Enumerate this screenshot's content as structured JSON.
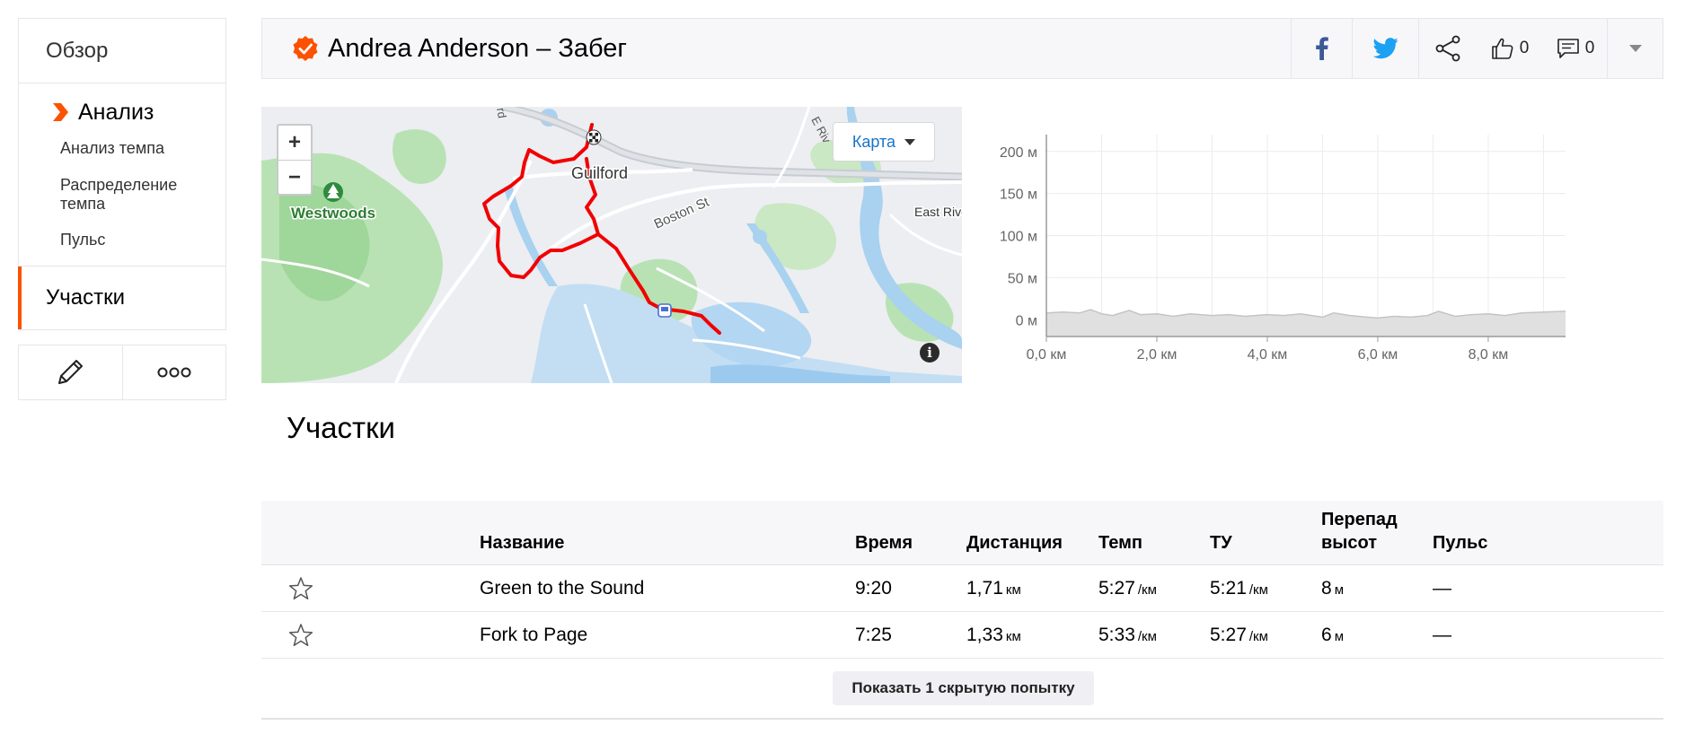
{
  "sidebar": {
    "overview": "Обзор",
    "analysis": "Анализ",
    "sub_items": [
      "Анализ темпа",
      "Распределение темпа",
      "Пульс"
    ],
    "segments": "Участки",
    "edit_icon": "pencil-icon",
    "more_icon": "ellipsis-icon"
  },
  "header": {
    "title": "Andrea Anderson – Забег",
    "kudos_count": "0",
    "comment_count": "0",
    "icons": [
      "facebook-icon",
      "twitter-icon",
      "share-icon",
      "thumbs-up-icon",
      "comment-icon",
      "chevron-down-icon"
    ]
  },
  "map": {
    "zoom_in": "+",
    "zoom_out": "−",
    "type_label": "Карта",
    "info_label": "i",
    "labels": {
      "guilford": "Guilford",
      "westwoods": "Westwoods",
      "boston_st": "Boston St",
      "east_river": "East Rive",
      "e_riv": "E Riv",
      "rd": "rd"
    }
  },
  "chart_data": {
    "type": "area",
    "title": "",
    "xlabel": "",
    "ylabel": "",
    "x_ticks": [
      "0,0 км",
      "2,0 км",
      "4,0 км",
      "6,0 км",
      "8,0 км"
    ],
    "y_ticks": [
      "200 м",
      "150 м",
      "100 м",
      "50 м",
      "0 м"
    ],
    "xlim": [
      0,
      9.4
    ],
    "ylim": [
      -20,
      220
    ],
    "grid": true,
    "x": [
      0,
      0.3,
      0.6,
      0.8,
      1.0,
      1.2,
      1.5,
      1.7,
      2.0,
      2.3,
      2.6,
      3.0,
      3.3,
      3.6,
      4.0,
      4.3,
      4.6,
      5.0,
      5.2,
      5.5,
      5.8,
      6.0,
      6.3,
      6.6,
      6.9,
      7.1,
      7.4,
      7.7,
      8.0,
      8.3,
      8.6,
      9.0,
      9.4
    ],
    "values": [
      8,
      9,
      8,
      12,
      7,
      5,
      11,
      6,
      7,
      4,
      7,
      5,
      6,
      4,
      6,
      5,
      7,
      3,
      8,
      5,
      3,
      2,
      4,
      3,
      5,
      10,
      4,
      6,
      7,
      5,
      8,
      9,
      10
    ],
    "fill_color": "#e0e0e0",
    "line_color": "#c4c4c4"
  },
  "segments_section": {
    "title": "Участки",
    "columns": {
      "name": "Название",
      "time": "Время",
      "distance": "Дистанция",
      "pace": "Темп",
      "gap": "ТУ",
      "elev_line1": "Перепад",
      "elev_line2": "высот",
      "hr": "Пульс"
    },
    "rows": [
      {
        "name": "Green to the Sound",
        "time": "9:20",
        "distance": "1,71",
        "distance_unit": "км",
        "pace": "5:27",
        "pace_unit": "/км",
        "gap": "5:21",
        "gap_unit": "/км",
        "elev": "8",
        "elev_unit": "м",
        "hr": "—"
      },
      {
        "name": "Fork to Page",
        "time": "7:25",
        "distance": "1,33",
        "distance_unit": "км",
        "pace": "5:33",
        "pace_unit": "/км",
        "gap": "5:27",
        "gap_unit": "/км",
        "elev": "6",
        "elev_unit": "м",
        "hr": "—"
      }
    ],
    "show_hidden": "Показать 1 скрытую попытку"
  },
  "colors": {
    "brand": "#fc5200",
    "route": "#f20000",
    "link": "#1a73c9",
    "facebook": "#3b5998",
    "twitter": "#1da1f2"
  }
}
